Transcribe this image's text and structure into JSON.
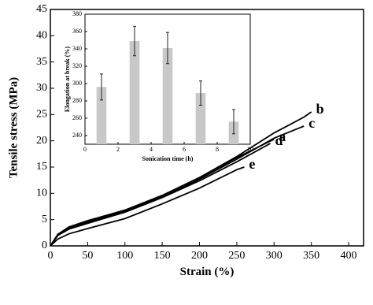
{
  "chart_data": [
    {
      "type": "line",
      "xlabel": "Strain (%)",
      "ylabel": "Tensile stress (MPa)",
      "xlim": [
        0,
        420
      ],
      "xticks": [
        0,
        50,
        100,
        150,
        200,
        250,
        300,
        350,
        400
      ],
      "ylim": [
        0,
        45
      ],
      "yticks": [
        0,
        5,
        10,
        15,
        20,
        25,
        30,
        35,
        40,
        45
      ],
      "series": [
        {
          "name": "b",
          "color": "#000000",
          "x": [
            0,
            10,
            25,
            50,
            100,
            150,
            200,
            250,
            300,
            340,
            350
          ],
          "values": [
            0,
            2.2,
            3.6,
            4.8,
            6.8,
            9.6,
            13,
            17,
            21.5,
            24.5,
            25.5
          ]
        },
        {
          "name": "c",
          "color": "#000000",
          "x": [
            0,
            10,
            25,
            50,
            100,
            150,
            200,
            250,
            300,
            340
          ],
          "values": [
            0,
            2,
            3.3,
            4.5,
            6.6,
            9.3,
            12.7,
            16.5,
            20.5,
            22.8
          ]
        },
        {
          "name": "a",
          "color": "#000000",
          "x": [
            0,
            10,
            25,
            50,
            100,
            150,
            200,
            250,
            300
          ],
          "values": [
            0,
            2.1,
            3.5,
            4.7,
            6.8,
            9.6,
            13,
            16.8,
            20.3
          ]
        },
        {
          "name": "d",
          "color": "#000000",
          "x": [
            0,
            10,
            25,
            50,
            100,
            150,
            200,
            250,
            295
          ],
          "values": [
            0,
            2,
            3.2,
            4.3,
            6.4,
            9.2,
            12.4,
            16,
            19.5
          ]
        },
        {
          "name": "e",
          "color": "#000000",
          "x": [
            0,
            10,
            25,
            50,
            100,
            150,
            200,
            250,
            260
          ],
          "values": [
            0,
            1.3,
            2.3,
            3.3,
            5.2,
            8,
            11,
            14.5,
            15
          ]
        }
      ]
    },
    {
      "type": "bar",
      "xlabel": "Sonication time (h)",
      "ylabel": "Elongation at break (%)",
      "xlim": [
        0,
        10
      ],
      "xticks": [
        0,
        2,
        4,
        6,
        8,
        10
      ],
      "ylim": [
        230,
        380
      ],
      "yticks": [
        240,
        260,
        280,
        300,
        320,
        340,
        360,
        380
      ],
      "color": "#c8c8c8",
      "x": [
        1,
        3,
        5,
        7,
        9
      ],
      "values": [
        296,
        349,
        341,
        289,
        256
      ],
      "errors": [
        15,
        17,
        18,
        14,
        14
      ]
    }
  ]
}
